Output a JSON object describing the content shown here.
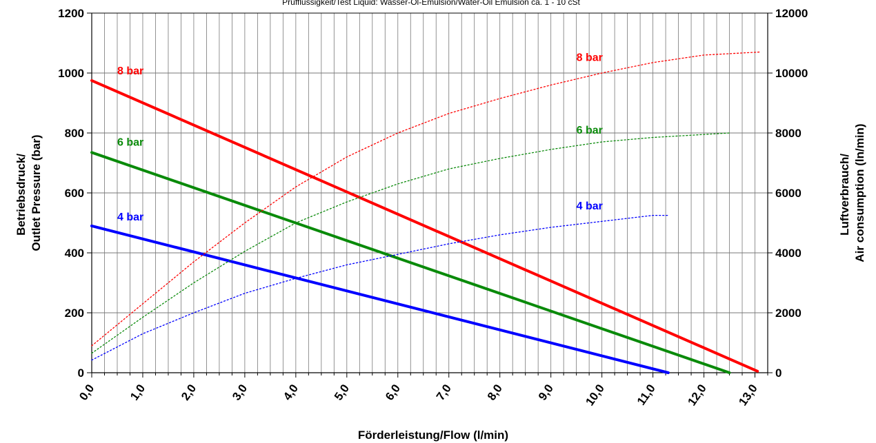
{
  "subtitle": "Prüfflüssigkeit/Test Liquid: Wasser-Öl-Emulsion/Water-Oil Emulsion ca. 1 - 10 cSt",
  "colors": {
    "red": "#ff0000",
    "green": "#0a8a0a",
    "blue": "#0000ff",
    "grid": "#777777"
  },
  "chart_data": {
    "type": "line",
    "title": "",
    "xlabel": "Förderleistung/Flow (l/min)",
    "ylabel_lines": [
      "Betriebsdruck/",
      "Outlet Pressure (bar)"
    ],
    "y2label_lines": [
      "Luftverbrauch/",
      "Air consumption (ln/min)"
    ],
    "xlim": [
      0,
      13.25
    ],
    "ylim": [
      0,
      1200
    ],
    "y2lim": [
      0,
      12000
    ],
    "x_ticks": [
      0,
      1,
      2,
      3,
      4,
      5,
      6,
      7,
      8,
      9,
      10,
      11,
      12,
      13
    ],
    "x_tick_labels": [
      "0,0",
      "1,0",
      "2,0",
      "3,0",
      "4,0",
      "5,0",
      "6,0",
      "7,0",
      "8,0",
      "9,0",
      "10,0",
      "11,0",
      "12,0",
      "13,0"
    ],
    "y_ticks": [
      0,
      200,
      400,
      600,
      800,
      1000,
      1200
    ],
    "y_tick_labels": [
      "0",
      "200",
      "400",
      "600",
      "800",
      "1000",
      "1200"
    ],
    "y2_ticks": [
      0,
      2000,
      4000,
      6000,
      8000,
      10000,
      12000
    ],
    "y2_tick_labels": [
      "0",
      "2000",
      "4000",
      "6000",
      "8000",
      "10000",
      "12000"
    ],
    "minor_grid_step": 0.25,
    "grid": true,
    "series": [
      {
        "name": "8 bar",
        "axis": "left",
        "color": "red",
        "style": "solid",
        "x": [
          0,
          13.05
        ],
        "y": [
          975,
          5
        ]
      },
      {
        "name": "6 bar",
        "axis": "left",
        "color": "green",
        "style": "solid",
        "x": [
          0,
          12.5
        ],
        "y": [
          735,
          0
        ]
      },
      {
        "name": "4 bar",
        "axis": "left",
        "color": "blue",
        "style": "solid",
        "x": [
          0,
          11.3
        ],
        "y": [
          490,
          0
        ]
      },
      {
        "name": "8 bar",
        "axis": "right",
        "color": "red",
        "style": "dotted",
        "x": [
          0,
          1,
          2,
          3,
          4,
          5,
          6,
          7,
          8,
          9,
          10,
          11,
          12,
          13.1
        ],
        "y": [
          900,
          2300,
          3700,
          5000,
          6200,
          7200,
          8000,
          8650,
          9150,
          9600,
          10000,
          10350,
          10600,
          10700
        ]
      },
      {
        "name": "6 bar",
        "axis": "right",
        "color": "green",
        "style": "dotted",
        "x": [
          0,
          1,
          2,
          3,
          4,
          5,
          6,
          7,
          8,
          9,
          10,
          11,
          12,
          12.5
        ],
        "y": [
          650,
          1850,
          3000,
          4050,
          5000,
          5700,
          6300,
          6800,
          7150,
          7450,
          7700,
          7850,
          7950,
          8000
        ]
      },
      {
        "name": "4 bar",
        "axis": "right",
        "color": "blue",
        "style": "dotted",
        "x": [
          0,
          1,
          2,
          3,
          4,
          5,
          6,
          7,
          8,
          9,
          10,
          11,
          11.3
        ],
        "y": [
          420,
          1300,
          2000,
          2650,
          3150,
          3600,
          3950,
          4300,
          4600,
          4850,
          5050,
          5250,
          5250
        ]
      }
    ],
    "labels": [
      {
        "text": "8 bar",
        "color": "red",
        "axis": "left",
        "x": 0.5,
        "y": 995
      },
      {
        "text": "6 bar",
        "color": "green",
        "axis": "left",
        "x": 0.5,
        "y": 757
      },
      {
        "text": "4 bar",
        "color": "blue",
        "axis": "left",
        "x": 0.5,
        "y": 508
      },
      {
        "text": "8 bar",
        "color": "red",
        "axis": "right",
        "x": 9.5,
        "y": 10400
      },
      {
        "text": "6 bar",
        "color": "green",
        "axis": "right",
        "x": 9.5,
        "y": 7980
      },
      {
        "text": "4 bar",
        "color": "blue",
        "axis": "right",
        "x": 9.5,
        "y": 5450
      }
    ]
  }
}
